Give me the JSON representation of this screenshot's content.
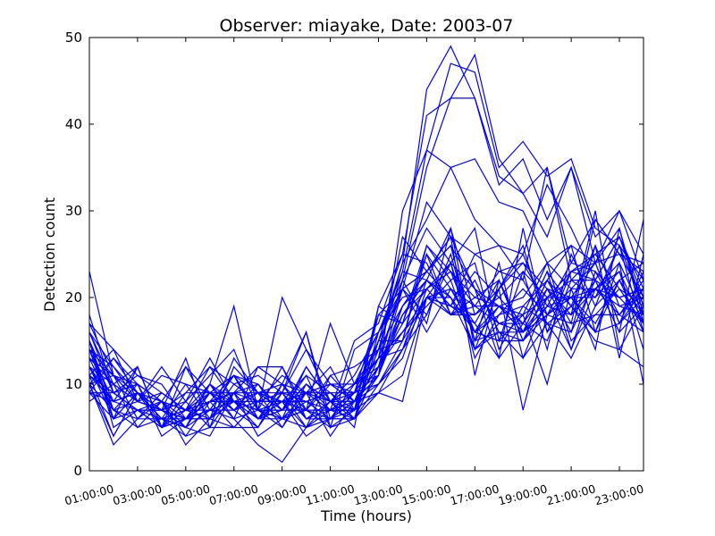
{
  "chart_data": {
    "type": "line",
    "title": "Observer: miayake, Date: 2003-07",
    "xlabel": "Time (hours)",
    "ylabel": "Detection count",
    "xlim": [
      1,
      24
    ],
    "ylim": [
      0,
      50
    ],
    "grid": false,
    "line_color": "#0000ff",
    "x": [
      1,
      2,
      3,
      4,
      5,
      6,
      7,
      8,
      9,
      10,
      11,
      12,
      13,
      14,
      15,
      16,
      17,
      18,
      19,
      20,
      21,
      22,
      23,
      24
    ],
    "x_ticks": [
      1,
      3,
      5,
      7,
      9,
      11,
      13,
      15,
      17,
      19,
      21,
      23
    ],
    "x_tick_labels": [
      "01:00:00",
      "03:00:00",
      "05:00:00",
      "07:00:00",
      "09:00:00",
      "11:00:00",
      "13:00:00",
      "15:00:00",
      "17:00:00",
      "19:00:00",
      "21:00:00",
      "23:00:00"
    ],
    "y_ticks": [
      0,
      10,
      20,
      30,
      40,
      50
    ],
    "y_tick_labels": [
      "0",
      "10",
      "20",
      "30",
      "40",
      "50"
    ],
    "series": [
      {
        "values": [
          23,
          11,
          9,
          6,
          5,
          9,
          8,
          7,
          8,
          9,
          10,
          8,
          15,
          24,
          44,
          49,
          43,
          33,
          36,
          29,
          35,
          27,
          30,
          22
        ]
      },
      {
        "values": [
          18,
          9,
          7,
          8,
          3,
          6,
          13,
          9,
          7,
          12,
          8,
          7,
          14,
          23,
          37,
          47,
          46,
          35,
          38,
          34,
          36,
          28,
          26,
          22
        ]
      },
      {
        "values": [
          16,
          12,
          8,
          7,
          6,
          8,
          9,
          12,
          10,
          16,
          6,
          6,
          12,
          22,
          35,
          43,
          48,
          36,
          32,
          27,
          35,
          24,
          30,
          25
        ]
      },
      {
        "values": [
          15,
          7,
          10,
          4,
          6,
          7,
          7,
          8,
          9,
          8,
          7,
          15,
          17,
          25,
          41,
          43,
          43,
          34,
          32,
          35,
          22,
          25,
          27,
          21
        ]
      },
      {
        "values": [
          14,
          11,
          6,
          9,
          7,
          10,
          19,
          7,
          5,
          9,
          12,
          7,
          18,
          21,
          31,
          27,
          25,
          26,
          22,
          35,
          24,
          29,
          25,
          24
        ]
      },
      {
        "values": [
          13,
          10,
          12,
          5,
          8,
          5,
          9,
          10,
          6,
          5,
          11,
          12,
          14,
          24,
          29,
          35,
          36,
          31,
          30,
          24,
          26,
          24,
          25,
          23
        ]
      },
      {
        "values": [
          12,
          8,
          9,
          6,
          7,
          7,
          8,
          7,
          20,
          14,
          10,
          9,
          11,
          30,
          37,
          35,
          29,
          26,
          25,
          33,
          28,
          22,
          27,
          20
        ]
      },
      {
        "values": [
          17,
          14,
          11,
          10,
          6,
          6,
          5,
          5,
          9,
          16,
          5,
          14,
          16,
          22,
          28,
          24,
          28,
          15,
          23,
          20,
          23,
          24,
          28,
          17
        ]
      },
      {
        "values": [
          11,
          14,
          8,
          7,
          9,
          12,
          8,
          5,
          10,
          7,
          17,
          10,
          13,
          27,
          23,
          27,
          21,
          19,
          16,
          22,
          17,
          29,
          25,
          20
        ]
      },
      {
        "values": [
          10,
          13,
          10,
          8,
          4,
          5,
          12,
          9,
          8,
          8,
          6,
          7,
          19,
          17,
          26,
          22,
          24,
          14,
          19,
          22,
          26,
          16,
          22,
          18
        ]
      },
      {
        "values": [
          9,
          6,
          7,
          7,
          6,
          8,
          9,
          6,
          8,
          4,
          6,
          10,
          14,
          19,
          22,
          28,
          18,
          21,
          24,
          19,
          24,
          23,
          20,
          21
        ]
      },
      {
        "values": [
          16,
          9,
          7,
          5,
          7,
          12,
          10,
          11,
          9,
          9,
          8,
          9,
          18,
          17,
          25,
          21,
          17,
          13,
          28,
          16,
          23,
          25,
          21,
          19
        ]
      },
      {
        "values": [
          14,
          12,
          9,
          8,
          12,
          9,
          6,
          12,
          12,
          7,
          6,
          8,
          12,
          19,
          23,
          26,
          21,
          17,
          18,
          20,
          22,
          20,
          23,
          17
        ]
      },
      {
        "values": [
          12,
          10,
          8,
          12,
          8,
          11,
          14,
          7,
          7,
          10,
          8,
          10,
          16,
          23,
          22,
          19,
          25,
          23,
          24,
          21,
          18,
          22,
          27,
          19
        ]
      },
      {
        "values": [
          10,
          11,
          8,
          9,
          7,
          8,
          11,
          9,
          9,
          14,
          8,
          11,
          16,
          21,
          23,
          20,
          16,
          21,
          26,
          16,
          19,
          26,
          19,
          20
        ]
      },
      {
        "values": [
          11,
          4,
          9,
          7,
          13,
          5,
          5,
          8,
          6,
          12,
          8,
          5,
          19,
          25,
          24,
          18,
          22,
          16,
          15,
          21,
          20,
          17,
          22,
          24
        ]
      },
      {
        "values": [
          9,
          8,
          9,
          6,
          4,
          8,
          8,
          6,
          9,
          6,
          6,
          8,
          12,
          18,
          22,
          20,
          14,
          17,
          16,
          20,
          14,
          21,
          20,
          21
        ]
      },
      {
        "values": [
          13,
          7,
          6,
          6,
          6,
          9,
          7,
          8,
          8,
          9,
          7,
          9,
          13,
          16,
          19,
          22,
          14,
          16,
          16,
          19,
          18,
          21,
          24,
          18
        ]
      },
      {
        "values": [
          15,
          9,
          7,
          5,
          9,
          9,
          11,
          6,
          10,
          9,
          7,
          9,
          13,
          21,
          18,
          24,
          21,
          13,
          17,
          21,
          16,
          22,
          20,
          17
        ]
      },
      {
        "values": [
          12,
          6,
          9,
          8,
          6,
          7,
          11,
          7,
          12,
          6,
          8,
          8,
          10,
          13,
          21,
          24,
          13,
          18,
          21,
          18,
          21,
          21,
          23,
          14
        ]
      },
      {
        "values": [
          11,
          8,
          7,
          6,
          7,
          6,
          10,
          8,
          8,
          11,
          5,
          7,
          13,
          16,
          20,
          19,
          23,
          20,
          23,
          14,
          25,
          19,
          26,
          16
        ]
      },
      {
        "values": [
          10,
          7,
          8,
          7,
          5,
          7,
          6,
          7,
          6,
          8,
          9,
          7,
          11,
          18,
          21,
          23,
          19,
          19,
          17,
          23,
          19,
          16,
          17,
          20
        ]
      },
      {
        "values": [
          14,
          6,
          12,
          5,
          6,
          8,
          9,
          9,
          5,
          10,
          8,
          9,
          15,
          15,
          25,
          18,
          19,
          17,
          17,
          15,
          22,
          22,
          16,
          19
        ]
      },
      {
        "values": [
          16,
          10,
          5,
          8,
          5,
          10,
          7,
          10,
          7,
          7,
          5,
          6,
          9,
          14,
          18,
          25,
          15,
          24,
          13,
          20,
          20,
          24,
          17,
          21
        ]
      },
      {
        "values": [
          15,
          5,
          7,
          7,
          6,
          6,
          8,
          8,
          11,
          9,
          4,
          8,
          11,
          21,
          16,
          21,
          16,
          18,
          19,
          17,
          13,
          19,
          22,
          16
        ]
      },
      {
        "values": [
          11,
          9,
          11,
          9,
          7,
          9,
          11,
          6,
          6,
          9,
          10,
          10,
          12,
          17,
          21,
          18,
          20,
          19,
          20,
          24,
          15,
          18,
          21,
          17
        ]
      },
      {
        "values": [
          12,
          7,
          5,
          6,
          10,
          6,
          9,
          6,
          8,
          5,
          6,
          9,
          10,
          15,
          20,
          18,
          18,
          20,
          17,
          23,
          14,
          23,
          18,
          16
        ]
      },
      {
        "values": [
          10,
          4,
          9,
          5,
          12,
          7,
          11,
          10,
          7,
          11,
          9,
          9,
          13,
          14,
          22,
          19,
          18,
          21,
          25,
          18,
          20,
          21,
          19,
          18
        ]
      },
      {
        "values": [
          14,
          8,
          12,
          5,
          6,
          9,
          9,
          8,
          8,
          9,
          9,
          6,
          12,
          22,
          17,
          28,
          14,
          21,
          7,
          18,
          20,
          20,
          26,
          19
        ]
      },
      {
        "values": [
          13,
          11,
          10,
          5,
          6,
          8,
          8,
          7,
          7,
          10,
          7,
          7,
          14,
          15,
          26,
          23,
          20,
          22,
          16,
          18,
          17,
          18,
          18,
          21
        ]
      },
      {
        "values": [
          12,
          8,
          9,
          7,
          5,
          4,
          9,
          4,
          6,
          7,
          10,
          8,
          12,
          16,
          20,
          24,
          15,
          19,
          18,
          10,
          21,
          14,
          28,
          18
        ]
      },
      {
        "values": [
          9,
          13,
          9,
          6,
          5,
          10,
          8,
          6,
          7,
          9,
          8,
          6,
          15,
          21,
          23,
          27,
          11,
          22,
          15,
          19,
          20,
          16,
          24,
          10
        ]
      },
      {
        "values": [
          10,
          3,
          6,
          8,
          7,
          9,
          7,
          5,
          10,
          6,
          7,
          7,
          9,
          11,
          20,
          20,
          16,
          15,
          18,
          24,
          21,
          24,
          17,
          23
        ]
      },
      {
        "values": [
          15,
          6,
          9,
          7,
          6,
          10,
          6,
          3,
          1,
          5,
          8,
          10,
          11,
          19,
          23,
          26,
          15,
          16,
          13,
          17,
          16,
          26,
          13,
          25
        ]
      },
      {
        "values": [
          17,
          11,
          8,
          11,
          10,
          9,
          7,
          9,
          8,
          7,
          6,
          6,
          16,
          20,
          21,
          23,
          16,
          15,
          15,
          19,
          18,
          30,
          14,
          12
        ]
      },
      {
        "values": [
          11,
          9,
          10,
          8,
          7,
          8,
          5,
          8,
          9,
          5,
          7,
          8,
          12,
          18,
          22,
          20,
          16,
          19,
          16,
          22,
          19,
          15,
          14,
          19
        ]
      },
      {
        "values": [
          8,
          10,
          8,
          7,
          8,
          13,
          8,
          9,
          10,
          7,
          11,
          8,
          9,
          8,
          20,
          19,
          17,
          22,
          15,
          18,
          23,
          22,
          16,
          29
        ]
      },
      {
        "values": [
          9,
          9,
          10,
          8,
          7,
          8,
          8,
          7,
          6,
          7,
          7,
          6,
          10,
          14,
          20,
          21,
          19,
          23,
          22,
          17,
          19,
          21,
          18,
          22
        ]
      }
    ]
  }
}
